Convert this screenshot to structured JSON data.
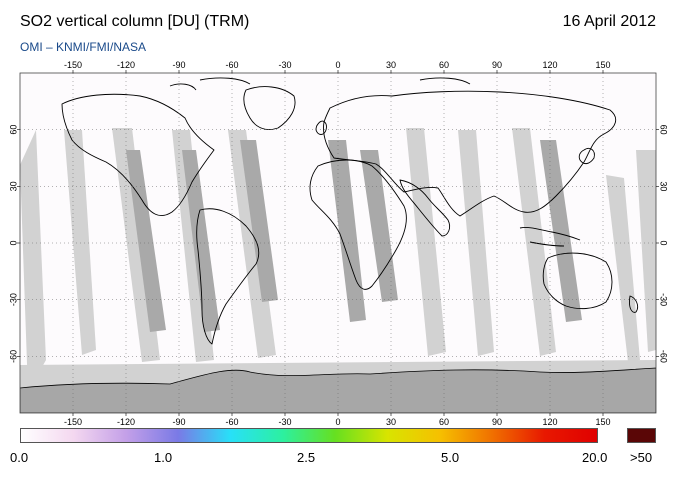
{
  "header": {
    "title": "SO2 vertical column [DU] (TRM)",
    "date": "16 April 2012",
    "subtitle": "OMI  –  KNMI/FMI/NASA"
  },
  "map": {
    "longitude_ticks": [
      "-150",
      "-120",
      "-90",
      "-60",
      "-30",
      "0",
      "30",
      "60",
      "90",
      "120",
      "150"
    ],
    "latitude_ticks": [
      "60",
      "30",
      "0",
      "-30",
      "-60"
    ],
    "projection": "equirectangular",
    "grid": "dotted",
    "swath_colors": {
      "light": "#d2d2d2",
      "dark": "#a9a9a9",
      "land_ice": "#a7a7a7"
    }
  },
  "colorbar": {
    "labels": [
      "0.0",
      "1.0",
      "2.5",
      "5.0",
      "20.0"
    ],
    "overflow_label": ">50",
    "colors": [
      "#ffffff",
      "#f4d8f0",
      "#c4a0e8",
      "#7a7ae6",
      "#28e0f8",
      "#2cf0a0",
      "#66e020",
      "#d8e400",
      "#f6c000",
      "#f07000",
      "#e81800",
      "#e00000"
    ],
    "overflow_color": "#5a0606"
  }
}
